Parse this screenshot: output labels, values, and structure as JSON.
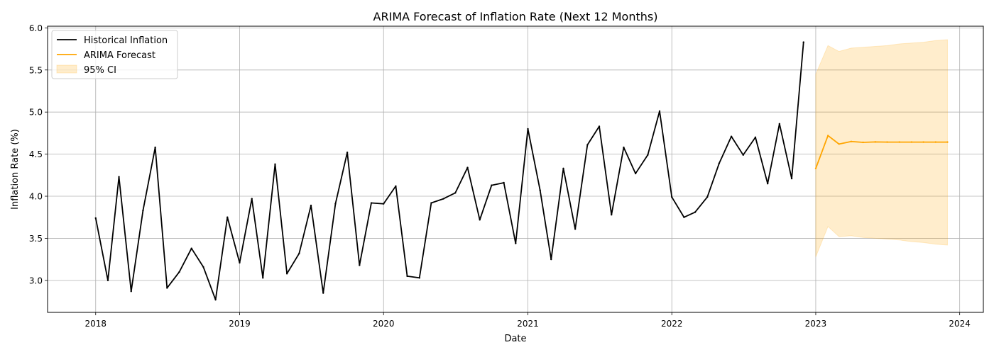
{
  "chart_data": {
    "type": "line",
    "title": "ARIMA Forecast of Inflation Rate (Next 12 Months)",
    "xlabel": "Date",
    "ylabel": "Inflation Rate (%)",
    "x_range": [
      "2017-09-01",
      "2024-03-01"
    ],
    "ylim": [
      2.62,
      6.02
    ],
    "xticks": [
      {
        "date": "2018-01-01",
        "label": "2018"
      },
      {
        "date": "2019-01-01",
        "label": "2019"
      },
      {
        "date": "2020-01-01",
        "label": "2020"
      },
      {
        "date": "2021-01-01",
        "label": "2021"
      },
      {
        "date": "2022-01-01",
        "label": "2022"
      },
      {
        "date": "2023-01-01",
        "label": "2023"
      },
      {
        "date": "2024-01-01",
        "label": "2024"
      }
    ],
    "yticks": [
      {
        "value": 3.0,
        "label": "3.0"
      },
      {
        "value": 3.5,
        "label": "3.5"
      },
      {
        "value": 4.0,
        "label": "4.0"
      },
      {
        "value": 4.5,
        "label": "4.5"
      },
      {
        "value": 5.0,
        "label": "5.0"
      },
      {
        "value": 5.5,
        "label": "5.5"
      },
      {
        "value": 6.0,
        "label": "6.0"
      }
    ],
    "grid": true,
    "legend_position": "top-left",
    "series": [
      {
        "name": "Historical Inflation",
        "color": "#000000",
        "x": [
          "2018-01",
          "2018-02",
          "2018-03",
          "2018-04",
          "2018-05",
          "2018-06",
          "2018-07",
          "2018-08",
          "2018-09",
          "2018-10",
          "2018-11",
          "2018-12",
          "2019-01",
          "2019-02",
          "2019-03",
          "2019-04",
          "2019-05",
          "2019-06",
          "2019-07",
          "2019-08",
          "2019-09",
          "2019-10",
          "2019-11",
          "2019-12",
          "2020-01",
          "2020-02",
          "2020-03",
          "2020-04",
          "2020-05",
          "2020-06",
          "2020-07",
          "2020-08",
          "2020-09",
          "2020-10",
          "2020-11",
          "2020-12",
          "2021-01",
          "2021-02",
          "2021-03",
          "2021-04",
          "2021-05",
          "2021-06",
          "2021-07",
          "2021-08",
          "2021-09",
          "2021-10",
          "2021-11",
          "2021-12",
          "2022-01",
          "2022-02",
          "2022-03",
          "2022-04",
          "2022-05",
          "2022-06",
          "2022-07",
          "2022-08",
          "2022-09",
          "2022-10",
          "2022-11",
          "2022-12"
        ],
        "values": [
          3.74,
          3.0,
          4.23,
          2.87,
          3.83,
          4.58,
          2.91,
          3.1,
          3.38,
          3.16,
          2.77,
          3.75,
          3.21,
          3.97,
          3.03,
          4.38,
          3.08,
          3.32,
          3.89,
          2.85,
          3.91,
          4.52,
          3.18,
          3.92,
          3.91,
          4.12,
          3.05,
          3.03,
          3.92,
          3.97,
          4.04,
          4.34,
          3.72,
          4.13,
          4.16,
          3.44,
          4.8,
          4.07,
          3.25,
          4.33,
          3.61,
          4.61,
          4.83,
          3.78,
          4.58,
          4.27,
          4.49,
          5.01,
          3.99,
          3.75,
          3.81,
          3.99,
          4.39,
          4.71,
          4.49,
          4.7,
          4.15,
          4.86,
          4.21,
          5.83
        ]
      },
      {
        "name": "ARIMA Forecast",
        "color": "#ffa500",
        "x": [
          "2023-01",
          "2023-02",
          "2023-03",
          "2023-04",
          "2023-05",
          "2023-06",
          "2023-07",
          "2023-08",
          "2023-09",
          "2023-10",
          "2023-11",
          "2023-12"
        ],
        "values": [
          4.33,
          4.72,
          4.62,
          4.65,
          4.64,
          4.645,
          4.643,
          4.643,
          4.643,
          4.643,
          4.643,
          4.643
        ]
      }
    ],
    "confidence_interval": {
      "name": "95% CI",
      "color": "#ffa500",
      "opacity": 0.2,
      "x": [
        "2023-01",
        "2023-02",
        "2023-03",
        "2023-04",
        "2023-05",
        "2023-06",
        "2023-07",
        "2023-08",
        "2023-09",
        "2023-10",
        "2023-11",
        "2023-12"
      ],
      "lower": [
        3.28,
        3.64,
        3.52,
        3.53,
        3.51,
        3.5,
        3.49,
        3.48,
        3.46,
        3.45,
        3.43,
        3.42
      ],
      "upper": [
        5.45,
        5.79,
        5.72,
        5.76,
        5.77,
        5.78,
        5.79,
        5.81,
        5.82,
        5.83,
        5.85,
        5.86
      ]
    }
  }
}
